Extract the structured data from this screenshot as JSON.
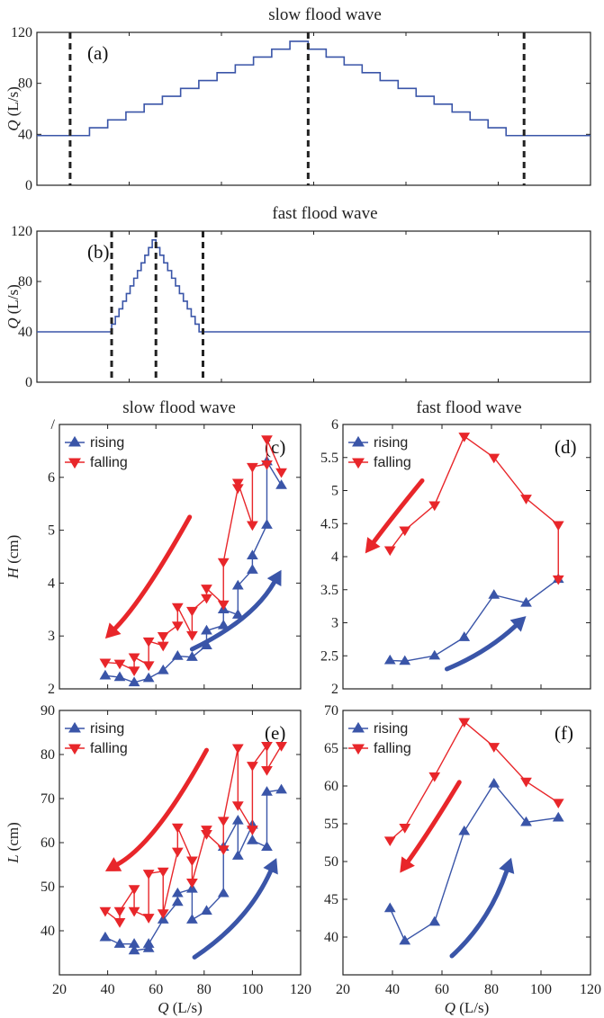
{
  "colors": {
    "rising": "#3a55a8",
    "falling": "#e8262a",
    "line": "#3a55a8",
    "dash": "#222222"
  },
  "chart_data": [
    {
      "id": "a",
      "type": "line",
      "panel_label": "(a)",
      "title": "slow flood wave",
      "ylabel": "Q (L/s)",
      "ylim": [
        0,
        120
      ],
      "yticks": [
        0,
        40,
        80,
        120
      ],
      "xlim": [
        0,
        1
      ],
      "grid": false,
      "stair": {
        "base": 39,
        "start": 0.095,
        "peak_x": 0.49,
        "end": 0.88,
        "peak": 113,
        "steps": 12
      },
      "dashes": [
        0.06,
        0.49,
        0.88
      ]
    },
    {
      "id": "b",
      "type": "line",
      "panel_label": "(b)",
      "title": "fast flood wave",
      "ylabel": "Q (L/s)",
      "ylim": [
        0,
        120
      ],
      "yticks": [
        0,
        40,
        80,
        120
      ],
      "xlim": [
        0,
        1
      ],
      "grid": false,
      "stair": {
        "base": 40,
        "start": 0.135,
        "peak_x": 0.215,
        "end": 0.3,
        "peak": 113,
        "steps": 12
      },
      "dashes": [
        0.135,
        0.215,
        0.3
      ]
    },
    {
      "id": "c",
      "type": "line",
      "panel_label": "(c)",
      "title": "slow flood wave",
      "ylabel": "H (cm)",
      "xlim": [
        20,
        120
      ],
      "ylim": [
        2,
        7
      ],
      "yticks": [
        2,
        3,
        4,
        5,
        6,
        7
      ],
      "ytick_labels": [
        "2",
        "3",
        "4",
        "5",
        "6",
        "/"
      ],
      "legend": {
        "rising": "rising",
        "falling": "falling",
        "position": "top-left"
      },
      "series": [
        {
          "name": "rising",
          "points": [
            [
              39,
              2.25
            ],
            [
              45,
              2.22
            ],
            [
              51,
              2.12
            ],
            [
              57,
              2.2
            ],
            [
              63,
              2.35
            ],
            [
              69,
              2.62
            ],
            [
              75,
              2.6
            ],
            [
              81,
              2.82
            ],
            [
              81,
              3.1
            ],
            [
              88,
              3.2
            ],
            [
              88,
              3.5
            ],
            [
              94,
              3.4
            ],
            [
              94,
              3.95
            ],
            [
              100,
              4.25
            ],
            [
              100,
              4.52
            ],
            [
              106,
              5.1
            ],
            [
              106,
              6.3
            ],
            [
              112,
              5.85
            ]
          ]
        },
        {
          "name": "falling",
          "points": [
            [
              39,
              2.5
            ],
            [
              45,
              2.48
            ],
            [
              51,
              2.35
            ],
            [
              51,
              2.6
            ],
            [
              57,
              2.45
            ],
            [
              57,
              2.9
            ],
            [
              63,
              2.82
            ],
            [
              63,
              3.0
            ],
            [
              69,
              3.2
            ],
            [
              69,
              3.55
            ],
            [
              75,
              3.02
            ],
            [
              75,
              3.48
            ],
            [
              81,
              3.72
            ],
            [
              81,
              3.9
            ],
            [
              88,
              3.6
            ],
            [
              88,
              4.4
            ],
            [
              94,
              5.8
            ],
            [
              94,
              5.9
            ],
            [
              100,
              5.1
            ],
            [
              100,
              6.2
            ],
            [
              106,
              6.25
            ],
            [
              106,
              6.72
            ],
            [
              112,
              6.1
            ]
          ]
        }
      ],
      "arrows": [
        {
          "color": "falling",
          "from": [
            74,
            5.25
          ],
          "ctrl": [
            55,
            3.7
          ],
          "to": [
            39,
            2.95
          ]
        },
        {
          "color": "rising",
          "from": [
            75,
            2.75
          ],
          "ctrl": [
            100,
            3.3
          ],
          "to": [
            112,
            4.25
          ]
        }
      ]
    },
    {
      "id": "d",
      "type": "line",
      "panel_label": "(d)",
      "title": "fast flood wave",
      "ylabel": "",
      "xlim": [
        20,
        120
      ],
      "ylim": [
        2,
        6
      ],
      "yticks": [
        2,
        2.5,
        3,
        3.5,
        4,
        4.5,
        5,
        5.5,
        6
      ],
      "ytick_labels": [
        "2",
        "2.5",
        "3",
        "3.5",
        "4",
        "4.5",
        "5",
        "5.5",
        "6"
      ],
      "legend": {
        "rising": "rising",
        "falling": "falling",
        "position": "top-left"
      },
      "series": [
        {
          "name": "rising",
          "points": [
            [
              39,
              2.43
            ],
            [
              45,
              2.42
            ],
            [
              57,
              2.5
            ],
            [
              69,
              2.78
            ],
            [
              81,
              3.42
            ],
            [
              94,
              3.3
            ],
            [
              107,
              3.66
            ]
          ]
        },
        {
          "name": "falling",
          "points": [
            [
              39,
              4.1
            ],
            [
              45,
              4.4
            ],
            [
              57,
              4.78
            ],
            [
              69,
              5.82
            ],
            [
              81,
              5.5
            ],
            [
              94,
              4.88
            ],
            [
              107,
              4.48
            ],
            [
              107,
              3.66
            ]
          ]
        }
      ],
      "arrows": [
        {
          "color": "falling",
          "from": [
            52,
            5.15
          ],
          "ctrl": [
            40,
            4.6
          ],
          "to": [
            29,
            4.05
          ]
        },
        {
          "color": "rising",
          "from": [
            62,
            2.3
          ],
          "ctrl": [
            78,
            2.55
          ],
          "to": [
            94,
            3.1
          ]
        }
      ]
    },
    {
      "id": "e",
      "type": "line",
      "panel_label": "(e)",
      "title": "",
      "ylabel": "L (cm)",
      "xlim": [
        20,
        120
      ],
      "ylim": [
        30,
        90
      ],
      "yticks": [
        40,
        50,
        60,
        70,
        80,
        90
      ],
      "ytick_labels": [
        "40",
        "50",
        "60",
        "70",
        "80",
        "90"
      ],
      "xticks": [
        20,
        40,
        60,
        80,
        100,
        120
      ],
      "xlabel": "Q (L/s)",
      "legend": {
        "rising": "rising",
        "falling": "falling",
        "position": "top-left"
      },
      "series": [
        {
          "name": "rising",
          "points": [
            [
              39,
              38.5
            ],
            [
              45,
              37
            ],
            [
              51,
              37
            ],
            [
              51,
              35.5
            ],
            [
              57,
              36
            ],
            [
              57,
              37
            ],
            [
              63,
              42.5
            ],
            [
              69,
              46.5
            ],
            [
              69,
              48.5
            ],
            [
              75,
              49.5
            ],
            [
              75,
              42.5
            ],
            [
              81,
              44.5
            ],
            [
              88,
              48.5
            ],
            [
              88,
              59
            ],
            [
              94,
              65
            ],
            [
              94,
              57
            ],
            [
              100,
              64
            ],
            [
              100,
              60.5
            ],
            [
              106,
              59
            ],
            [
              106,
              71.5
            ],
            [
              112,
              72
            ]
          ]
        },
        {
          "name": "falling",
          "points": [
            [
              39,
              44.5
            ],
            [
              45,
              42
            ],
            [
              45,
              44.5
            ],
            [
              51,
              49.5
            ],
            [
              51,
              44.5
            ],
            [
              57,
              43
            ],
            [
              57,
              53
            ],
            [
              63,
              53.5
            ],
            [
              63,
              44
            ],
            [
              69,
              58
            ],
            [
              69,
              63.5
            ],
            [
              75,
              56
            ],
            [
              75,
              51
            ],
            [
              81,
              63
            ],
            [
              81,
              62
            ],
            [
              88,
              58.5
            ],
            [
              88,
              65
            ],
            [
              94,
              81.5
            ],
            [
              94,
              68.5
            ],
            [
              100,
              63
            ],
            [
              100,
              77.5
            ],
            [
              106,
              82
            ],
            [
              106,
              76.5
            ],
            [
              112,
              82
            ]
          ]
        }
      ],
      "arrows": [
        {
          "color": "falling",
          "from": [
            81,
            81
          ],
          "ctrl": [
            60,
            60
          ],
          "to": [
            39,
            53.5
          ]
        },
        {
          "color": "rising",
          "from": [
            76,
            34
          ],
          "ctrl": [
            98,
            42
          ],
          "to": [
            110,
            56.5
          ]
        }
      ]
    },
    {
      "id": "f",
      "type": "line",
      "panel_label": "(f)",
      "title": "",
      "ylabel": "",
      "xlim": [
        20,
        120
      ],
      "ylim": [
        35,
        70
      ],
      "yticks": [
        40,
        45,
        50,
        55,
        60,
        65,
        70
      ],
      "ytick_labels": [
        "40",
        "45",
        "50",
        "55",
        "60",
        "65",
        "70"
      ],
      "xticks": [
        20,
        40,
        60,
        80,
        100,
        120
      ],
      "xlabel": "Q (L/s)",
      "legend": {
        "rising": "rising",
        "falling": "falling",
        "position": "top-left"
      },
      "series": [
        {
          "name": "rising",
          "points": [
            [
              39,
              43.8
            ],
            [
              45,
              39.5
            ],
            [
              57,
              42
            ],
            [
              69,
              54
            ],
            [
              81,
              60.3
            ],
            [
              94,
              55.2
            ],
            [
              107,
              55.8
            ]
          ]
        },
        {
          "name": "falling",
          "points": [
            [
              39,
              52.8
            ],
            [
              45,
              54.5
            ],
            [
              57,
              61.3
            ],
            [
              69,
              68.5
            ],
            [
              81,
              65.2
            ],
            [
              94,
              60.6
            ],
            [
              107,
              57.8
            ]
          ]
        }
      ],
      "arrows": [
        {
          "color": "falling",
          "from": [
            67,
            60.5
          ],
          "ctrl": [
            55,
            54
          ],
          "to": [
            43,
            48.5
          ]
        },
        {
          "color": "rising",
          "from": [
            64,
            37.5
          ],
          "ctrl": [
            79,
            42
          ],
          "to": [
            88,
            50.5
          ]
        }
      ]
    }
  ]
}
